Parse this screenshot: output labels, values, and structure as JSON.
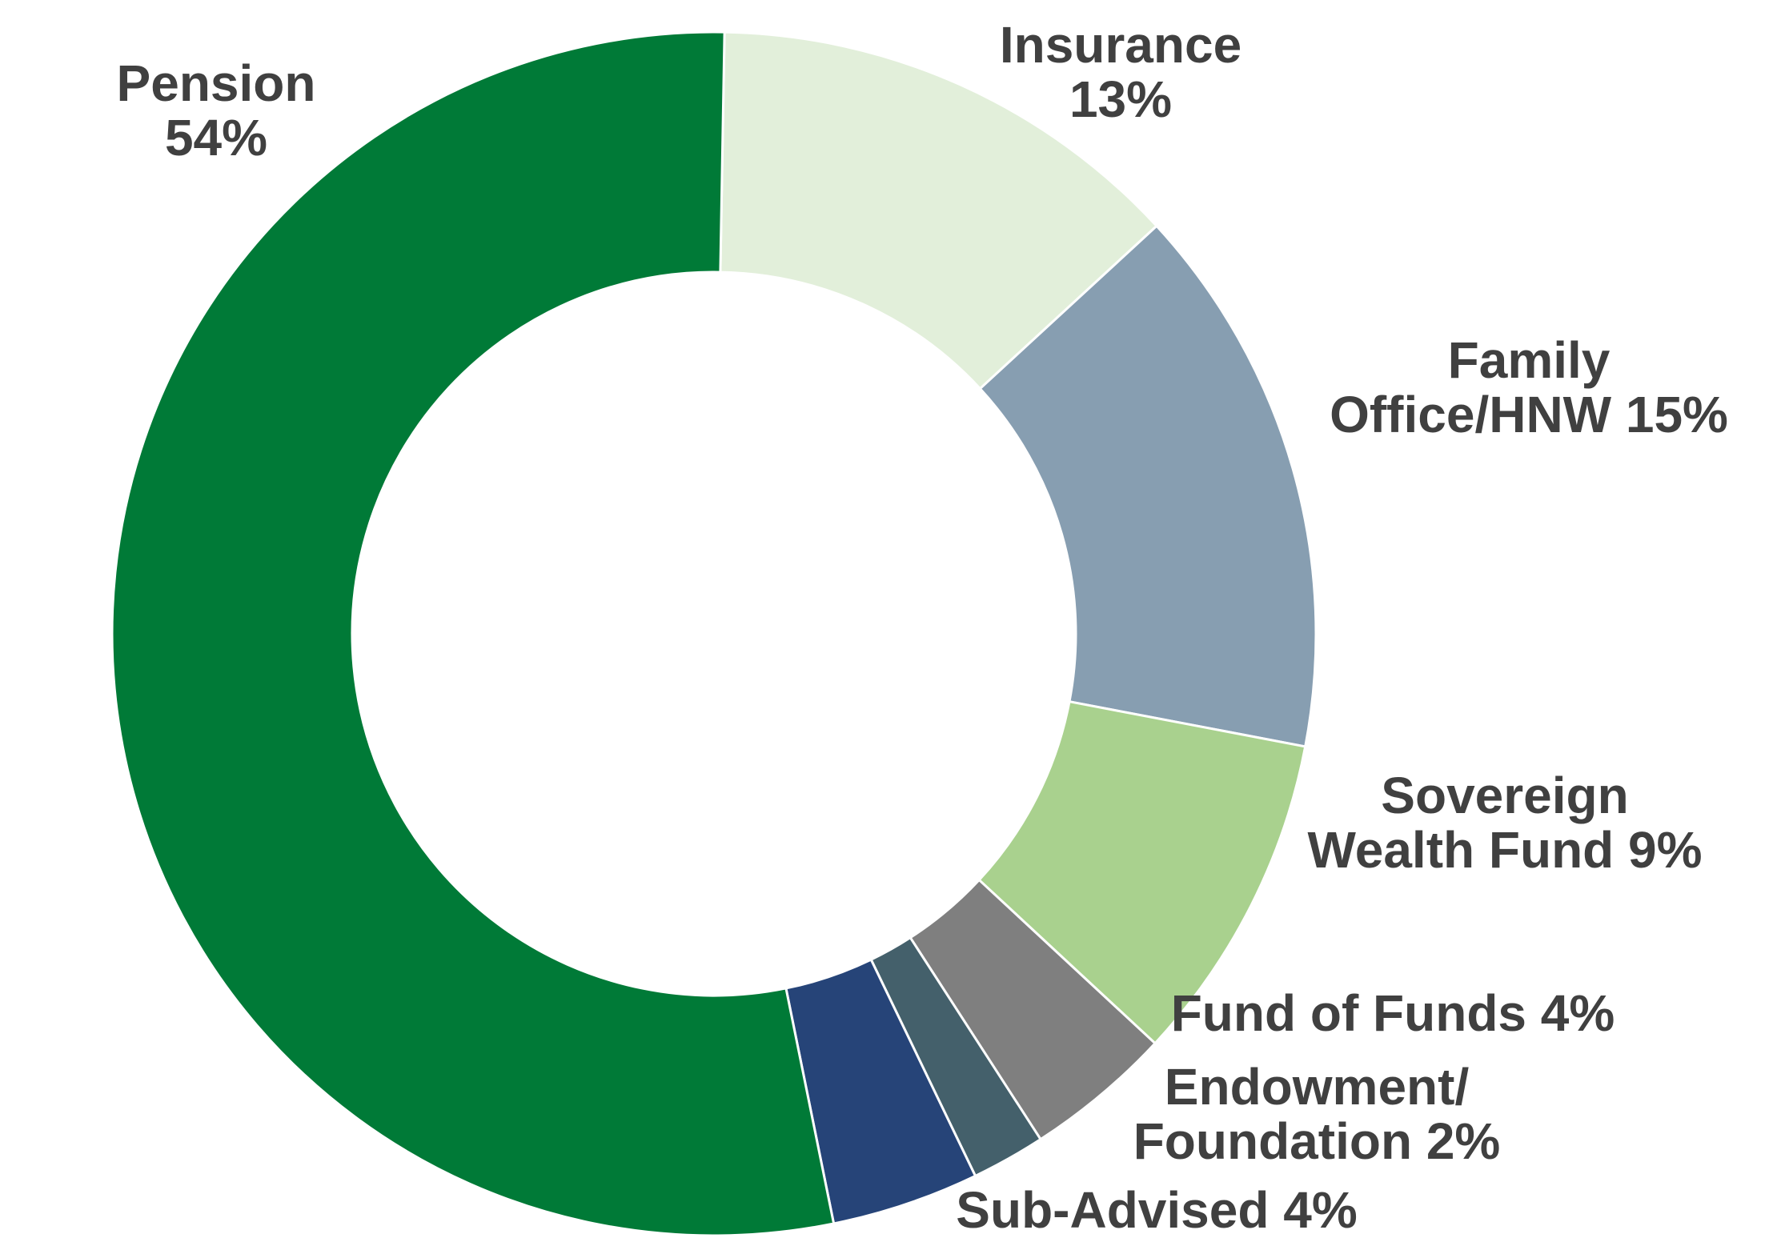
{
  "chart_data": {
    "type": "pie",
    "donut": true,
    "slices": [
      {
        "name": "Insurance",
        "value": 13,
        "color": "#e2efda",
        "label_lines": [
          "Insurance",
          "13%"
        ]
      },
      {
        "name": "Family Office/HNW",
        "value": 15,
        "color": "#879eb1",
        "label_lines": [
          "Family",
          "Office/HNW  15%"
        ]
      },
      {
        "name": "Sovereign Wealth Fund",
        "value": 9,
        "color": "#a9d18e",
        "label_lines": [
          "Sovereign",
          "Wealth Fund  9%"
        ]
      },
      {
        "name": "Fund of Funds",
        "value": 4,
        "color": "#7f7f7f",
        "label_lines": [
          "Fund of Funds  4%"
        ]
      },
      {
        "name": "Endowment/Foundation",
        "value": 2,
        "color": "#44606b",
        "label_lines": [
          "Endowment/",
          "Foundation  2%"
        ]
      },
      {
        "name": "Sub-Advised",
        "value": 4,
        "color": "#264478",
        "label_lines": [
          "Sub-Advised 4%"
        ]
      },
      {
        "name": "Pension",
        "value": 54,
        "color": "#007a37",
        "label_lines": [
          "Pension",
          "54%"
        ]
      }
    ],
    "legend": "none"
  }
}
